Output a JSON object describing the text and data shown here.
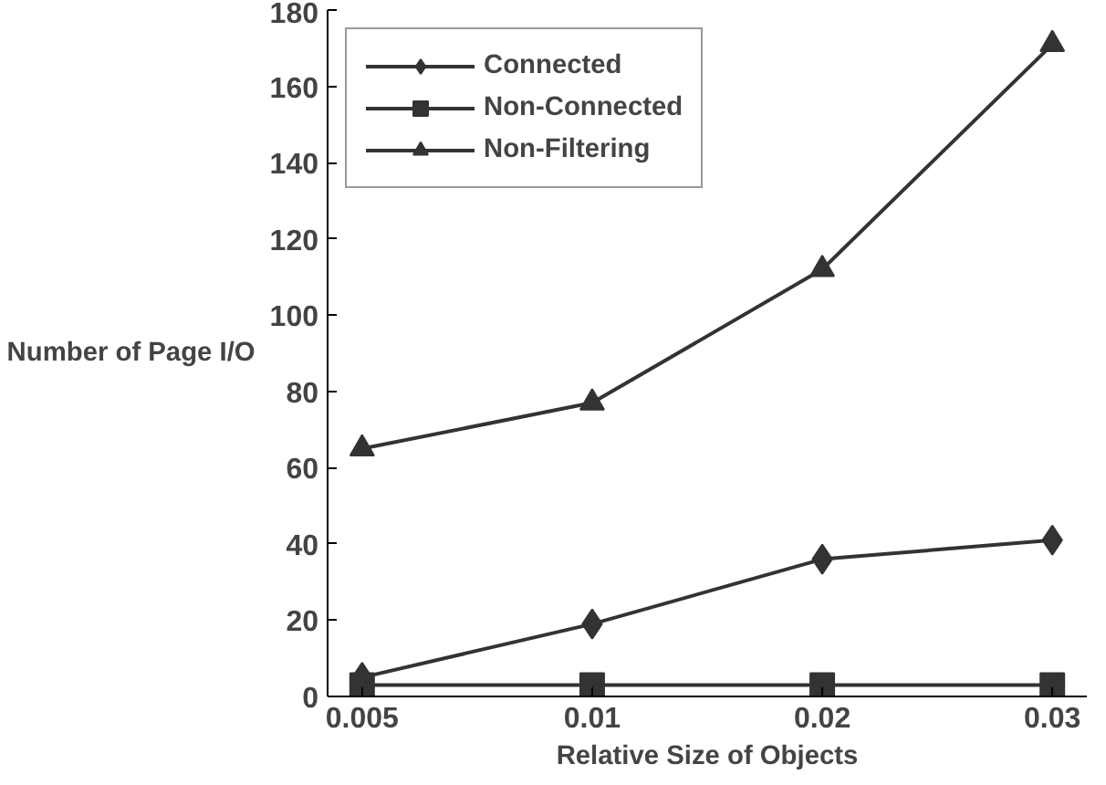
{
  "chart_data": {
    "type": "line",
    "xlabel": "Relative Size of Objects",
    "ylabel": "Number of Page I/O",
    "categories": [
      "0.005",
      "0.01",
      "0.02",
      "0.03"
    ],
    "ylim": [
      0,
      180
    ],
    "yticks": [
      0,
      20,
      40,
      60,
      80,
      100,
      120,
      140,
      160,
      180
    ],
    "grid": false,
    "legend": "top left",
    "line_style": "solid",
    "series": [
      {
        "name": "Connected",
        "color": "#333333",
        "marker": "diamond",
        "values": [
          5,
          19,
          36,
          41
        ]
      },
      {
        "name": "Non-Connected",
        "color": "#333333",
        "marker": "square",
        "values": [
          3,
          3,
          3,
          3
        ]
      },
      {
        "name": "Non-Filtering",
        "color": "#333333",
        "marker": "triangle",
        "values": [
          65,
          77,
          112,
          171
        ]
      }
    ]
  }
}
